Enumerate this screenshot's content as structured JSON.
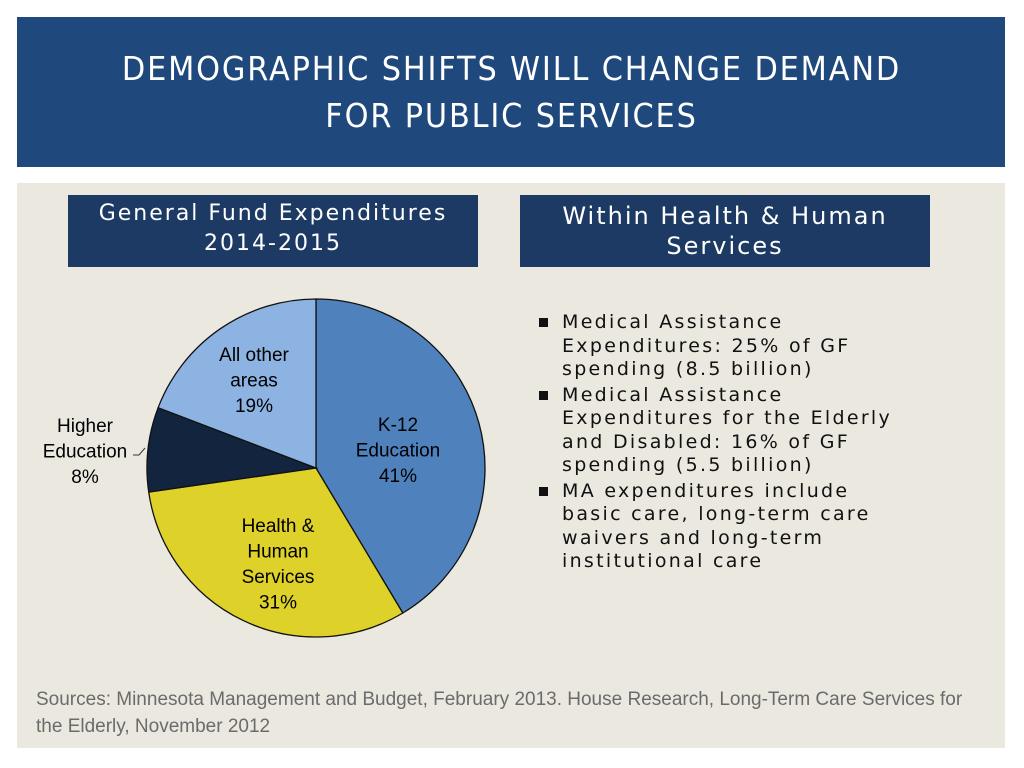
{
  "slide": {
    "title_lines": [
      "DEMOGRAPHIC SHIFTS WILL CHANGE DEMAND",
      "FOR PUBLIC SERVICES"
    ]
  },
  "left_header": {
    "line1": "General Fund Expenditures",
    "line2": "2014-2015"
  },
  "right_header": {
    "line1": "Within Health & Human",
    "line2": "Services"
  },
  "bullets": [
    "Medical Assistance Expenditures: 25% of GF spending (8.5 billion)",
    "Medical Assistance Expenditures for the Elderly and Disabled: 16% of GF spending (5.5 billion)",
    "MA expenditures include basic care, long-term care waivers and long-term institutional care"
  ],
  "sources": "Sources: Minnesota Management and Budget, February 2013.  House Research, Long-Term Care Services for the Elderly, November 2012",
  "colors": {
    "title_bg": "#1f497d",
    "header_bg": "#1c3a63",
    "content_bg": "#ebe8e0"
  },
  "chart_data": {
    "type": "pie",
    "title": "General Fund Expenditures 2014-2015",
    "start": "top",
    "direction": "clockwise",
    "slices": [
      {
        "name": "K-12 Education",
        "label_lines": [
          "K-12",
          "Education",
          "41%"
        ],
        "value": 41,
        "color": "#4f81bd"
      },
      {
        "name": "Health & Human Services",
        "label_lines": [
          "Health &",
          "Human",
          "Services",
          "31%"
        ],
        "value": 31,
        "color": "#ddd12a"
      },
      {
        "name": "Higher Education",
        "label_lines": [
          "Higher",
          "Education",
          "8%"
        ],
        "value": 8,
        "color": "#13243f",
        "label_outside": true
      },
      {
        "name": "All other areas",
        "label_lines": [
          "All other",
          "areas",
          "19%"
        ],
        "value": 19,
        "color": "#8db3e2"
      }
    ]
  }
}
